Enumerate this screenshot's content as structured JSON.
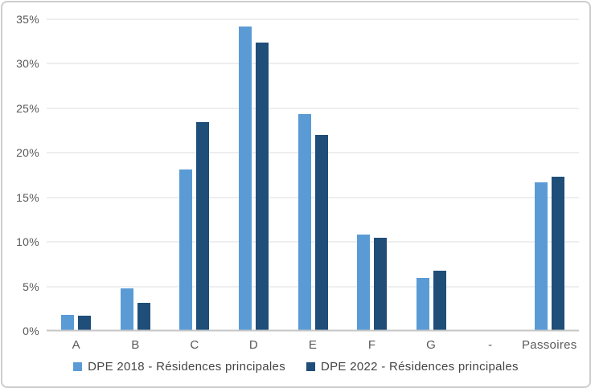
{
  "chart_data": {
    "type": "bar",
    "title": "",
    "categories": [
      "A",
      "B",
      "C",
      "D",
      "E",
      "F",
      "G",
      "-",
      "Passoires"
    ],
    "series": [
      {
        "name": "DPE 2018 - Résidences principales",
        "color": "#5B9BD5",
        "values": [
          1.8,
          4.8,
          18.1,
          34.2,
          24.4,
          10.8,
          6.0,
          0,
          16.7
        ]
      },
      {
        "name": "DPE 2022 - Résidences principales",
        "color": "#1F4E79",
        "values": [
          1.7,
          3.2,
          23.5,
          32.4,
          22.0,
          10.5,
          6.8,
          0,
          17.3
        ]
      }
    ],
    "xlabel": "",
    "ylabel": "",
    "ylim": [
      0,
      35
    ],
    "ytick_step": 5,
    "ytick_suffix": "%",
    "grid": true,
    "legend_position": "bottom"
  },
  "colors": {
    "gridline": "#dcdcdc",
    "axis_line": "#c6c6c6",
    "axis_text": "#595959",
    "legend_text": "#454545",
    "frame_border": "#cdcdcd",
    "background": "#ffffff"
  }
}
